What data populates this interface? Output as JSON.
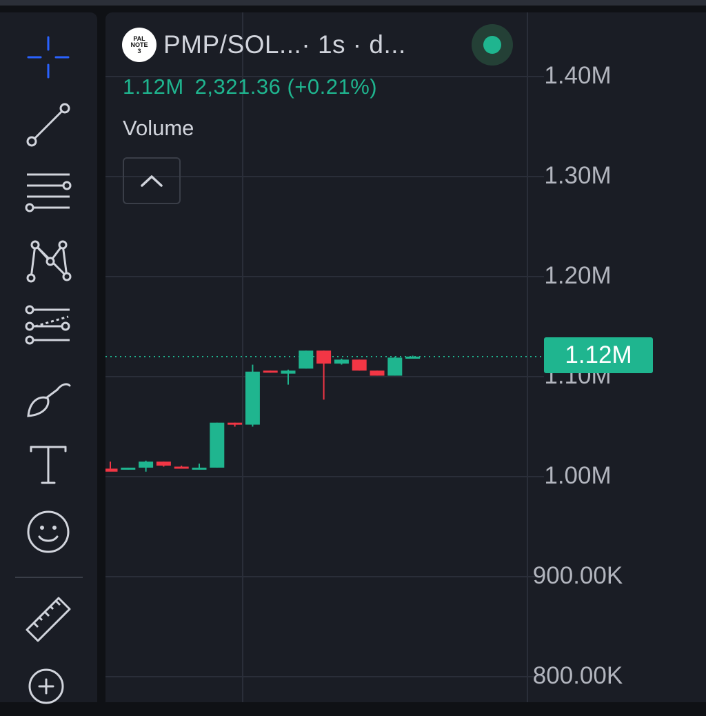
{
  "toolbar": {
    "tools": [
      {
        "name": "crosshair",
        "icon": "crosshair-icon",
        "active": true
      },
      {
        "name": "trend-line",
        "icon": "trend-line-icon"
      },
      {
        "name": "horizontal-lines",
        "icon": "fib-lines-icon"
      },
      {
        "name": "patterns",
        "icon": "pattern-icon"
      },
      {
        "name": "projection",
        "icon": "projection-icon"
      },
      {
        "name": "brush",
        "icon": "brush-icon"
      },
      {
        "name": "text",
        "icon": "text-icon"
      },
      {
        "name": "emoji",
        "icon": "smiley-icon"
      },
      {
        "name": "measure",
        "icon": "ruler-icon"
      },
      {
        "name": "zoom-in",
        "icon": "zoom-in-icon"
      }
    ]
  },
  "legend": {
    "avatar_text": "PAL NOTE 3",
    "symbol": "PMP/SOL...",
    "interval": " · 1s · d...",
    "ohlc_value": "1.12M",
    "ohlc_change": "2,321.36 (+0.21%)",
    "volume_label": "Volume"
  },
  "price_axis": {
    "labels": [
      "1.40M",
      "1.30M",
      "1.20M",
      "1.10M",
      "1.00M",
      "900.00K",
      "800.00K"
    ],
    "current_price_label": "1.12M"
  },
  "colors": {
    "up": "#1fb58f",
    "down": "#f23645",
    "grid": "#2a2e39",
    "accent": "#2962ff"
  },
  "chart_data": {
    "type": "candlestick",
    "interval": "1s",
    "ylim": [
      800000,
      1400000
    ],
    "current_price": 1120000,
    "candles": [
      {
        "o": 1008000,
        "h": 1015000,
        "l": 1008000,
        "c": 1005000
      },
      {
        "o": 1008000,
        "h": 1009000,
        "l": 1007000,
        "c": 1009000
      },
      {
        "o": 1009000,
        "h": 1016000,
        "l": 1005000,
        "c": 1015000
      },
      {
        "o": 1015000,
        "h": 1015000,
        "l": 1010000,
        "c": 1011000
      },
      {
        "o": 1010000,
        "h": 1011000,
        "l": 1008000,
        "c": 1009000
      },
      {
        "o": 1008000,
        "h": 1013000,
        "l": 1007000,
        "c": 1009000
      },
      {
        "o": 1009000,
        "h": 1054000,
        "l": 1009000,
        "c": 1054000
      },
      {
        "o": 1054000,
        "h": 1054000,
        "l": 1050000,
        "c": 1052000
      },
      {
        "o": 1052000,
        "h": 1112000,
        "l": 1050000,
        "c": 1105000
      },
      {
        "o": 1106000,
        "h": 1106000,
        "l": 1104000,
        "c": 1104000
      },
      {
        "o": 1103000,
        "h": 1107000,
        "l": 1092000,
        "c": 1106000
      },
      {
        "o": 1108000,
        "h": 1126000,
        "l": 1108000,
        "c": 1126000
      },
      {
        "o": 1126000,
        "h": 1126000,
        "l": 1077000,
        "c": 1113000
      },
      {
        "o": 1113000,
        "h": 1118000,
        "l": 1112000,
        "c": 1117000
      },
      {
        "o": 1117000,
        "h": 1117000,
        "l": 1106000,
        "c": 1106000
      },
      {
        "o": 1106000,
        "h": 1106000,
        "l": 1101000,
        "c": 1101000
      },
      {
        "o": 1101000,
        "h": 1120000,
        "l": 1101000,
        "c": 1119000
      },
      {
        "o": 1119000,
        "h": 1121000,
        "l": 1118000,
        "c": 1120000
      }
    ]
  }
}
